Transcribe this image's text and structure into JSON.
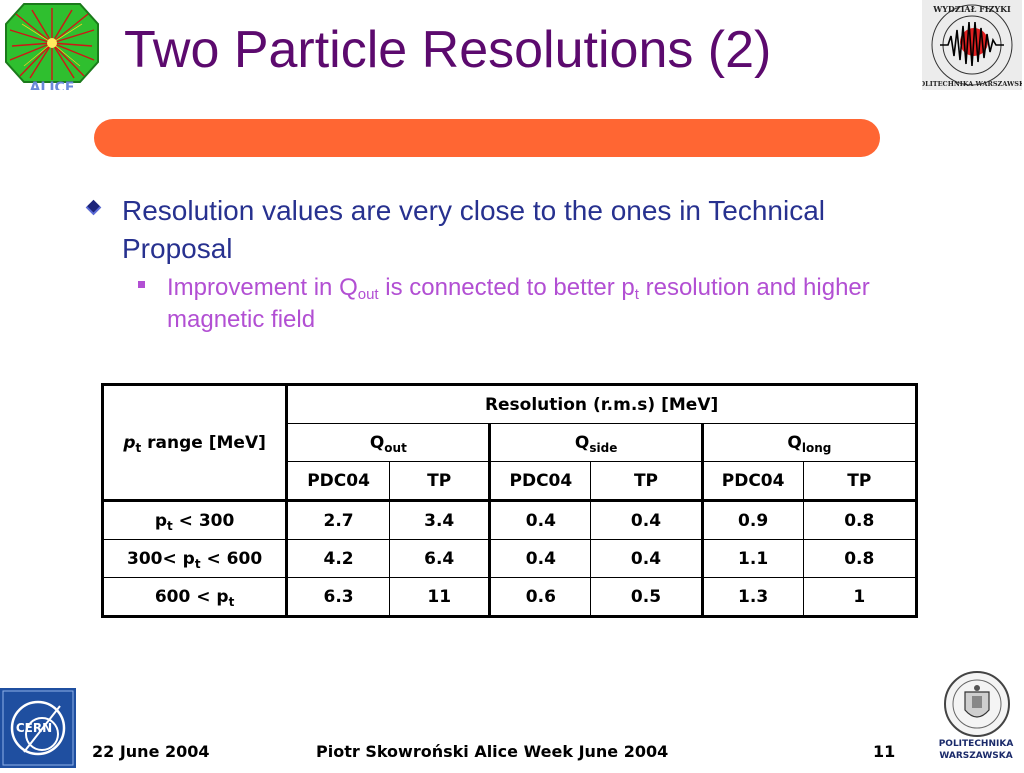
{
  "slide": {
    "title": "Two Particle Resolutions (2)",
    "bullet1": "Resolution values are very close to the ones in Technical Proposal",
    "bullet2": {
      "part1": "Improvement in Q",
      "sub1": "out",
      "part2": " is connected to better p",
      "sub2": "t",
      "part3": " resolution and higher magnetic field"
    }
  },
  "table": {
    "row_header_p": "p",
    "row_header_sub": "t",
    "row_header_rest": " range [MeV]",
    "group_header": "Resolution (r.m.s) [MeV]",
    "q_headers": [
      {
        "base": "Q",
        "sub": "out"
      },
      {
        "base": "Q",
        "sub": "side"
      },
      {
        "base": "Q",
        "sub": "long"
      }
    ],
    "sub_headers": [
      "PDC04",
      "TP",
      "PDC04",
      "TP",
      "PDC04",
      "TP"
    ],
    "rows": [
      {
        "pre": "p",
        "sub": "t",
        "post": " < 300",
        "values": [
          "2.7",
          "3.4",
          "0.4",
          "0.4",
          "0.9",
          "0.8"
        ]
      },
      {
        "pre": "300< p",
        "sub": "t",
        "post": " < 600",
        "values": [
          "4.2",
          "6.4",
          "0.4",
          "0.4",
          "1.1",
          "0.8"
        ]
      },
      {
        "pre": "600 < p",
        "sub": "t",
        "post": "",
        "values": [
          "6.3",
          "11",
          "0.6",
          "0.5",
          "1.3",
          "1"
        ]
      }
    ]
  },
  "footer": {
    "date": "22 June 2004",
    "author": "Piotr Skowroński  Alice Week June  2004",
    "page": "11"
  },
  "logos": {
    "alice_text": "ALICE",
    "faculty_text": "WYDZIAŁ FIZYKI POLITECHNIKA WARSZAWSKA",
    "cern_text": "CERN",
    "pw_text": "POLITECHNIKA WARSZAWSKA"
  },
  "colors": {
    "title": "#5c0a6e",
    "title_bar": "#ff6633",
    "bullet1": "#27318f",
    "bullet2": "#b24fd3"
  }
}
